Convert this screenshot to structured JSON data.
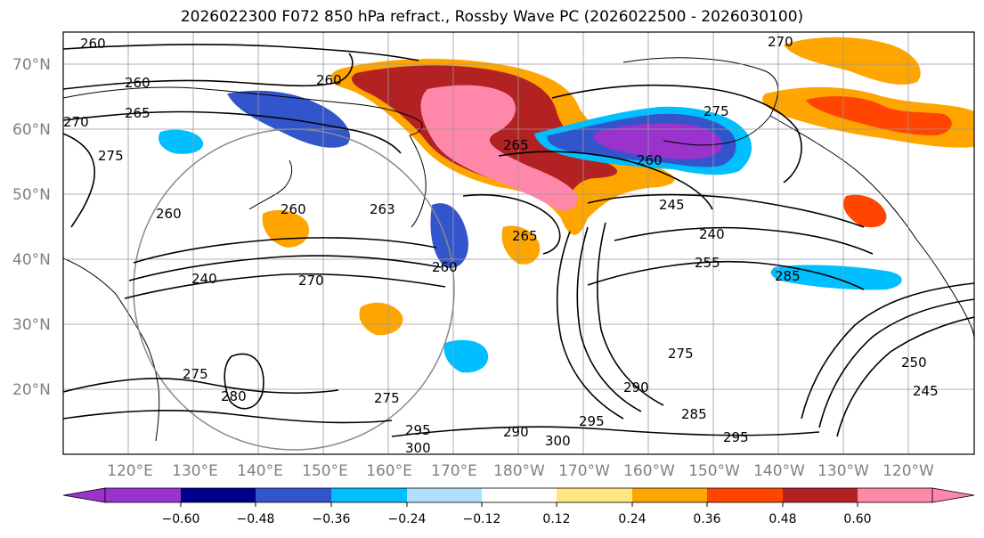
{
  "title": "2026022300 F072 850 hPa refract., Rossby Wave PC (2026022500 - 2026030100)",
  "map": {
    "lat_labels": [
      "70°N",
      "60°N",
      "50°N",
      "40°N",
      "30°N",
      "20°N"
    ],
    "lon_labels": [
      "120°E",
      "130°E",
      "140°E",
      "150°E",
      "160°E",
      "170°E",
      "180°W",
      "170°W",
      "160°W",
      "150°W",
      "140°W",
      "130°W",
      "120°W"
    ],
    "contour_labels": [
      "260",
      "260",
      "265",
      "270",
      "275",
      "270",
      "275",
      "260",
      "265",
      "260",
      "263",
      "260",
      "265",
      "245",
      "240",
      "255",
      "260",
      "270",
      "240",
      "275",
      "280",
      "285",
      "275",
      "290",
      "300",
      "295",
      "290",
      "295",
      "300",
      "295",
      "285",
      "250",
      "245",
      "260",
      "275"
    ]
  },
  "colorbar": {
    "tick_labels": [
      "−0.60",
      "−0.48",
      "−0.36",
      "−0.24",
      "−0.12",
      "0.12",
      "0.24",
      "0.36",
      "0.48",
      "0.60"
    ],
    "colors": [
      "#9933cc",
      "#00008b",
      "#3355cc",
      "#00bfff",
      "#b0e0ff",
      "#ffffff",
      "#ffe680",
      "#ffa500",
      "#ff4500",
      "#b22222",
      "#ff88aa"
    ],
    "bounds": [
      -0.72,
      -0.6,
      -0.48,
      -0.36,
      -0.24,
      -0.12,
      0.12,
      0.24,
      0.36,
      0.48,
      0.6,
      0.72
    ]
  }
}
